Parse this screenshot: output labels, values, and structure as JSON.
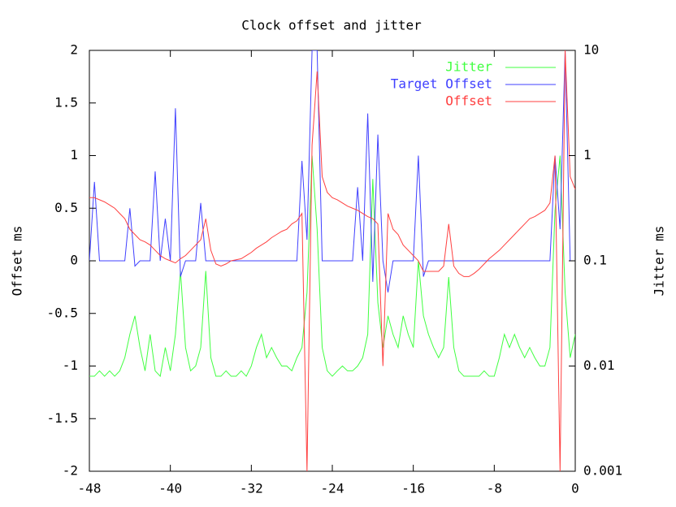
{
  "chart_data": {
    "type": "line",
    "title": "Clock offset and jitter",
    "y_label": "Offset ms",
    "y2_label": "Jitter ms",
    "x": [
      -48,
      -47.5,
      -47,
      -46.5,
      -46,
      -45.5,
      -45,
      -44.5,
      -44,
      -43.5,
      -43,
      -42.5,
      -42,
      -41.5,
      -41,
      -40.5,
      -40,
      -39.5,
      -39,
      -38.5,
      -38,
      -37.5,
      -37,
      -36.5,
      -36,
      -35.5,
      -35,
      -34.5,
      -34,
      -33.5,
      -33,
      -32.5,
      -32,
      -31.5,
      -31,
      -30.5,
      -30,
      -29.5,
      -29,
      -28.5,
      -28,
      -27.5,
      -27,
      -26.5,
      -26,
      -25.5,
      -25,
      -24.5,
      -24,
      -23.5,
      -23,
      -22.5,
      -22,
      -21.5,
      -21,
      -20.5,
      -20,
      -19.5,
      -19,
      -18.5,
      -18,
      -17.5,
      -17,
      -16.5,
      -16,
      -15.5,
      -15,
      -14.5,
      -14,
      -13.5,
      -13,
      -12.5,
      -12,
      -11.5,
      -11,
      -10.5,
      -10,
      -9.5,
      -9,
      -8.5,
      -8,
      -7.5,
      -7,
      -6.5,
      -6,
      -5.5,
      -5,
      -4.5,
      -4,
      -3.5,
      -3,
      -2.5,
      -2,
      -1.5,
      -1,
      -0.5,
      0
    ],
    "xlim": [
      -48,
      0
    ],
    "xticks": [
      -48,
      -40,
      -32,
      -24,
      -16,
      -8,
      0
    ],
    "ylim": [
      -2,
      2
    ],
    "yticks": [
      -2,
      -1.5,
      -1,
      -0.5,
      0,
      0.5,
      1,
      1.5,
      2
    ],
    "y2lim": [
      0.001,
      10
    ],
    "y2ticks": [
      0.001,
      0.01,
      0.1,
      1,
      10
    ],
    "y2_log": true,
    "legend": "top-right",
    "series": [
      {
        "name": "Jitter",
        "color": "#40ff40",
        "axis": "y2",
        "values": [
          0.008,
          0.008,
          0.009,
          0.008,
          0.009,
          0.008,
          0.009,
          0.012,
          0.02,
          0.03,
          0.015,
          0.009,
          0.02,
          0.009,
          0.008,
          0.015,
          0.009,
          0.02,
          0.08,
          0.015,
          0.009,
          0.01,
          0.015,
          0.08,
          0.012,
          0.008,
          0.008,
          0.009,
          0.008,
          0.008,
          0.009,
          0.008,
          0.01,
          0.015,
          0.02,
          0.012,
          0.015,
          0.012,
          0.01,
          0.01,
          0.009,
          0.012,
          0.015,
          0.05,
          1.0,
          0.2,
          0.015,
          0.009,
          0.008,
          0.009,
          0.01,
          0.009,
          0.009,
          0.01,
          0.012,
          0.02,
          0.6,
          0.04,
          0.015,
          0.03,
          0.02,
          0.015,
          0.03,
          0.02,
          0.015,
          0.1,
          0.03,
          0.02,
          0.015,
          0.012,
          0.015,
          0.07,
          0.015,
          0.009,
          0.008,
          0.008,
          0.008,
          0.008,
          0.009,
          0.008,
          0.008,
          0.012,
          0.02,
          0.015,
          0.02,
          0.015,
          0.012,
          0.015,
          0.012,
          0.01,
          0.01,
          0.015,
          0.3,
          1.0,
          0.05,
          0.012,
          0.02
        ]
      },
      {
        "name": "Target Offset",
        "color": "#4040ff",
        "axis": "y",
        "values": [
          0,
          0.75,
          0,
          0,
          0,
          0,
          0,
          0,
          0.5,
          -0.05,
          0,
          0,
          0,
          0.85,
          0,
          0.4,
          0,
          1.45,
          -0.15,
          0,
          0,
          0,
          0.55,
          0,
          0,
          0,
          0,
          0,
          0,
          0,
          0,
          0,
          0,
          0,
          0,
          0,
          0,
          0,
          0,
          0,
          0,
          0,
          0.95,
          0.2,
          2,
          2,
          0,
          0,
          0,
          0,
          0,
          0,
          0,
          0.7,
          0,
          1.4,
          -0.2,
          1.2,
          0,
          -0.3,
          0,
          0,
          0,
          0,
          0,
          1.0,
          -0.15,
          0,
          0,
          0,
          0,
          0,
          0,
          0,
          0,
          0,
          0,
          0,
          0,
          0,
          0,
          0,
          0,
          0,
          0,
          0,
          0,
          0,
          0,
          0,
          0,
          0,
          1.0,
          0.3,
          2,
          0,
          0
        ]
      },
      {
        "name": "Offset",
        "color": "#ff4040",
        "axis": "y",
        "values": [
          0.6,
          0.6,
          0.58,
          0.56,
          0.53,
          0.5,
          0.45,
          0.4,
          0.3,
          0.25,
          0.2,
          0.18,
          0.15,
          0.1,
          0.05,
          0.02,
          0.0,
          -0.02,
          0.02,
          0.05,
          0.1,
          0.15,
          0.2,
          0.4,
          0.1,
          -0.03,
          -0.05,
          -0.03,
          0,
          0.01,
          0.02,
          0.05,
          0.08,
          0.12,
          0.15,
          0.18,
          0.22,
          0.25,
          0.28,
          0.3,
          0.35,
          0.38,
          0.45,
          -2,
          1.1,
          1.8,
          0.8,
          0.65,
          0.6,
          0.58,
          0.55,
          0.52,
          0.5,
          0.48,
          0.45,
          0.42,
          0.4,
          0.35,
          -1,
          0.45,
          0.3,
          0.25,
          0.15,
          0.1,
          0.05,
          0.0,
          -0.1,
          -0.1,
          -0.1,
          -0.1,
          -0.05,
          0.35,
          -0.05,
          -0.12,
          -0.15,
          -0.15,
          -0.12,
          -0.08,
          -0.03,
          0.02,
          0.06,
          0.1,
          0.15,
          0.2,
          0.25,
          0.3,
          0.35,
          0.4,
          0.42,
          0.45,
          0.48,
          0.55,
          1.0,
          -2,
          2,
          0.8,
          0.68
        ]
      }
    ]
  }
}
